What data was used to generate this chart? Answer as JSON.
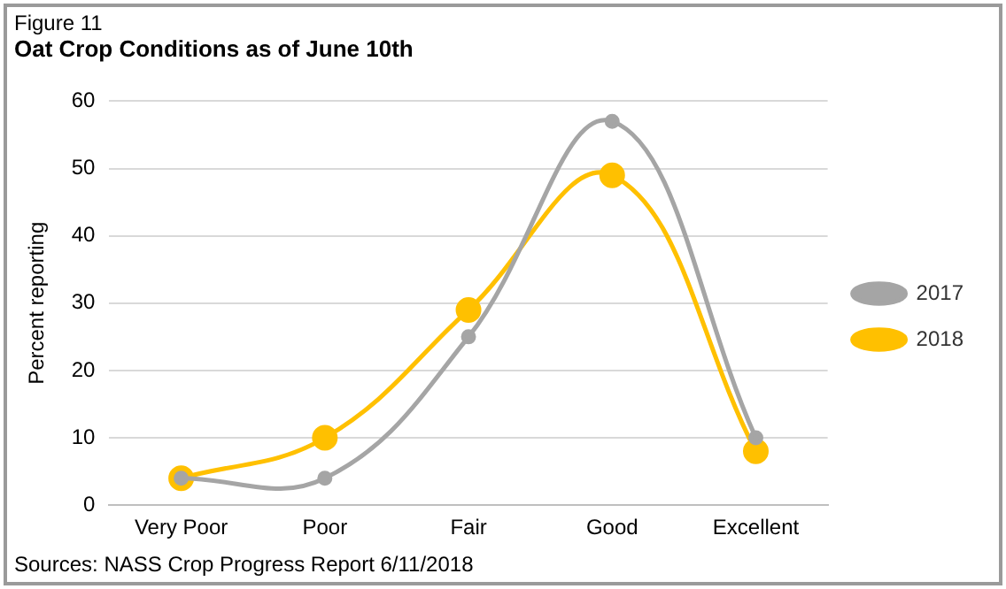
{
  "chart_data": {
    "type": "line",
    "title": "Oat Crop Conditions as of June 10th",
    "ylabel": "Percent reporting",
    "annotations": [
      "Figure 11",
      "Sources:  NASS Crop Progress Report 6/11/2018"
    ],
    "categories": [
      "Very Poor",
      "Poor",
      "Fair",
      "Good",
      "Excellent"
    ],
    "series": [
      {
        "name": "2017",
        "color": "#a5a5a5",
        "values": [
          4,
          4,
          25,
          57,
          10
        ]
      },
      {
        "name": "2018",
        "color": "#ffc000",
        "values": [
          4,
          10,
          29,
          49,
          8
        ]
      }
    ],
    "ylim": [
      0,
      60
    ],
    "yticks": [
      0,
      10,
      20,
      30,
      40,
      50,
      60
    ],
    "grid": "y",
    "legend": "right",
    "marker": "circle"
  }
}
